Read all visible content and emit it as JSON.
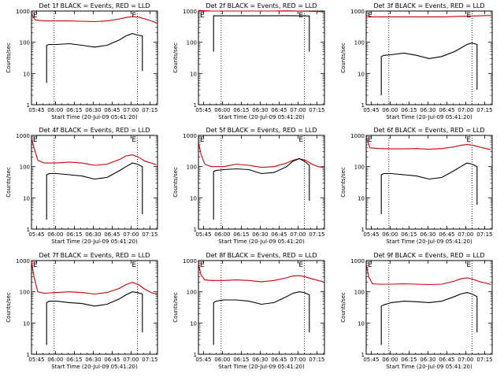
{
  "colors": {
    "events": "#000000",
    "lld": "#cc0000",
    "axes": "#000000"
  },
  "x_ticks": [
    "05:45",
    "06:00",
    "06:15",
    "06:30",
    "06:45",
    "07:00",
    "07:15"
  ],
  "ylabel": "Counts/sec",
  "xlabel": "Start Time (20-Jul-09 05:41:20)",
  "marker_label": "E",
  "chart_data": [
    {
      "type": "line",
      "title": "Det 1f BLACK = Events, RED = LLD",
      "ylabel": "Counts/sec",
      "xlabel": "Start Time (20-Jul-09 05:41:20)",
      "x_ticks": [
        "05:45",
        "06:00",
        "06:15",
        "06:30",
        "06:45",
        "07:00",
        "07:15"
      ],
      "y_scale": "log",
      "ylim": [
        1,
        1000
      ],
      "x_unit": "minutes after 05:41",
      "xlim": [
        0,
        100
      ],
      "vlines": [
        18,
        84
      ],
      "marker": "E",
      "series": [
        {
          "name": "LLD",
          "color": "#cc0000",
          "x": [
            0,
            3,
            10,
            20,
            30,
            40,
            50,
            60,
            70,
            75,
            80,
            85,
            90,
            95,
            99
          ],
          "y": [
            800,
            520,
            480,
            480,
            480,
            470,
            460,
            480,
            560,
            620,
            660,
            640,
            560,
            480,
            420
          ]
        },
        {
          "name": "Events",
          "color": "#000000",
          "x": [
            12,
            12,
            14,
            20,
            30,
            40,
            50,
            60,
            70,
            75,
            80,
            84,
            88,
            88
          ],
          "y": [
            5,
            80,
            85,
            85,
            90,
            80,
            70,
            80,
            120,
            160,
            190,
            170,
            160,
            12
          ]
        }
      ]
    },
    {
      "type": "line",
      "title": "Det 2f BLACK = Events, RED = LLD",
      "ylabel": "Counts/sec",
      "xlabel": "Start Time (20-Jul-09 05:41:20)",
      "x_ticks": [
        "05:45",
        "06:00",
        "06:15",
        "06:30",
        "06:45",
        "07:00",
        "07:15"
      ],
      "y_scale": "log",
      "ylim": [
        1,
        1000
      ],
      "x_unit": "minutes after 05:41",
      "xlim": [
        0,
        100
      ],
      "vlines": [
        18,
        84
      ],
      "marker": "E",
      "series": [
        {
          "name": "LLD",
          "color": "#cc0000",
          "x": [
            0,
            10,
            20,
            30,
            40,
            50,
            60,
            70,
            80,
            90,
            99
          ],
          "y": [
            1050,
            1000,
            1000,
            1000,
            1000,
            1000,
            1000,
            1020,
            1000,
            980,
            950
          ]
        },
        {
          "name": "Events",
          "color": "#000000",
          "x": [
            12,
            12,
            14,
            30,
            50,
            70,
            84,
            88,
            88
          ],
          "y": [
            50,
            700,
            700,
            700,
            700,
            710,
            700,
            690,
            50
          ]
        }
      ]
    },
    {
      "type": "line",
      "title": "Det 3f BLACK = Events, RED = LLD",
      "ylabel": "Counts/sec",
      "xlabel": "Start Time (20-Jul-09 05:41:20)",
      "x_ticks": [
        "05:45",
        "06:00",
        "06:15",
        "06:30",
        "06:45",
        "07:00",
        "07:15"
      ],
      "y_scale": "log",
      "ylim": [
        1,
        1000
      ],
      "x_unit": "minutes after 05:41",
      "xlim": [
        0,
        100
      ],
      "vlines": [
        18,
        84
      ],
      "marker": "E",
      "series": [
        {
          "name": "LLD",
          "color": "#cc0000",
          "x": [
            0,
            5,
            20,
            40,
            60,
            80,
            90,
            99
          ],
          "y": [
            700,
            650,
            650,
            650,
            650,
            680,
            700,
            720
          ]
        },
        {
          "name": "Events",
          "color": "#000000",
          "x": [
            12,
            12,
            14,
            20,
            30,
            40,
            50,
            60,
            70,
            75,
            80,
            84,
            88,
            88
          ],
          "y": [
            2,
            35,
            38,
            40,
            45,
            38,
            30,
            35,
            50,
            65,
            85,
            95,
            85,
            3
          ]
        }
      ]
    },
    {
      "type": "line",
      "title": "Det 4f BLACK = Events, RED = LLD",
      "ylabel": "Counts/sec",
      "xlabel": "Start Time (20-Jul-09 05:41:20)",
      "x_ticks": [
        "05:45",
        "06:00",
        "06:15",
        "06:30",
        "06:45",
        "07:00",
        "07:15"
      ],
      "y_scale": "log",
      "ylim": [
        1,
        1000
      ],
      "x_unit": "minutes after 05:41",
      "xlim": [
        0,
        100
      ],
      "vlines": [
        18,
        84
      ],
      "marker": "E",
      "series": [
        {
          "name": "LLD",
          "color": "#cc0000",
          "x": [
            0,
            2,
            5,
            10,
            20,
            30,
            40,
            50,
            60,
            70,
            75,
            80,
            85,
            90,
            95,
            99
          ],
          "y": [
            800,
            400,
            160,
            130,
            130,
            140,
            130,
            110,
            120,
            170,
            220,
            240,
            200,
            150,
            130,
            115
          ]
        },
        {
          "name": "Events",
          "color": "#000000",
          "x": [
            12,
            12,
            14,
            20,
            30,
            40,
            50,
            60,
            70,
            75,
            80,
            84,
            88,
            88
          ],
          "y": [
            2,
            55,
            60,
            60,
            55,
            50,
            40,
            45,
            75,
            100,
            130,
            120,
            100,
            3
          ]
        }
      ]
    },
    {
      "type": "line",
      "title": "Det 5f BLACK = Events, RED = LLD",
      "ylabel": "Counts/sec",
      "xlabel": "Start Time (20-Jul-09 05:41:20)",
      "x_ticks": [
        "05:45",
        "06:00",
        "06:15",
        "06:30",
        "06:45",
        "07:00",
        "07:15"
      ],
      "y_scale": "log",
      "ylim": [
        1,
        1000
      ],
      "x_unit": "minutes after 05:41",
      "xlim": [
        0,
        100
      ],
      "vlines": [
        18,
        84
      ],
      "marker": "E",
      "series": [
        {
          "name": "LLD",
          "color": "#cc0000",
          "x": [
            0,
            2,
            5,
            10,
            20,
            30,
            40,
            50,
            60,
            70,
            75,
            80,
            85,
            90,
            95,
            99
          ],
          "y": [
            600,
            250,
            120,
            100,
            100,
            120,
            110,
            95,
            100,
            130,
            160,
            180,
            160,
            120,
            100,
            95
          ]
        },
        {
          "name": "Events",
          "color": "#000000",
          "x": [
            12,
            12,
            14,
            20,
            30,
            40,
            50,
            60,
            70,
            75,
            80,
            84,
            88,
            88
          ],
          "y": [
            2,
            70,
            75,
            80,
            85,
            80,
            60,
            65,
            100,
            150,
            180,
            150,
            110,
            8
          ]
        }
      ]
    },
    {
      "type": "line",
      "title": "Det 6f BLACK = Events, RED = LLD",
      "ylabel": "Counts/sec",
      "xlabel": "Start Time (20-Jul-09 05:41:20)",
      "x_ticks": [
        "05:45",
        "06:00",
        "06:15",
        "06:30",
        "06:45",
        "07:00",
        "07:15"
      ],
      "y_scale": "log",
      "ylim": [
        1,
        1000
      ],
      "x_unit": "minutes after 05:41",
      "xlim": [
        0,
        100
      ],
      "vlines": [
        18,
        84
      ],
      "marker": "E",
      "series": [
        {
          "name": "LLD",
          "color": "#cc0000",
          "x": [
            0,
            3,
            10,
            20,
            30,
            40,
            50,
            60,
            70,
            75,
            80,
            85,
            90,
            95,
            99
          ],
          "y": [
            900,
            400,
            380,
            370,
            370,
            380,
            360,
            380,
            430,
            480,
            510,
            480,
            420,
            380,
            350
          ]
        },
        {
          "name": "Events",
          "color": "#000000",
          "x": [
            12,
            12,
            14,
            20,
            30,
            40,
            50,
            60,
            70,
            75,
            80,
            84,
            88,
            88
          ],
          "y": [
            3,
            55,
            60,
            60,
            55,
            50,
            40,
            45,
            75,
            100,
            130,
            120,
            100,
            6
          ]
        }
      ]
    },
    {
      "type": "line",
      "title": "Det 7f BLACK = Events, RED = LLD",
      "ylabel": "Counts/sec",
      "xlabel": "Start Time (20-Jul-09 05:41:20)",
      "x_ticks": [
        "05:45",
        "06:00",
        "06:15",
        "06:30",
        "06:45",
        "07:00",
        "07:15"
      ],
      "y_scale": "log",
      "ylim": [
        1,
        1000
      ],
      "x_unit": "minutes after 05:41",
      "xlim": [
        0,
        100
      ],
      "vlines": [
        18,
        84
      ],
      "marker": "E",
      "series": [
        {
          "name": "LLD",
          "color": "#cc0000",
          "x": [
            0,
            2,
            5,
            10,
            20,
            30,
            40,
            50,
            60,
            70,
            75,
            80,
            85,
            90,
            95,
            99
          ],
          "y": [
            900,
            300,
            100,
            90,
            95,
            100,
            95,
            85,
            95,
            130,
            170,
            200,
            170,
            120,
            95,
            85
          ]
        },
        {
          "name": "Events",
          "color": "#000000",
          "x": [
            12,
            12,
            14,
            20,
            30,
            40,
            50,
            60,
            70,
            75,
            80,
            84,
            88,
            88
          ],
          "y": [
            2,
            45,
            50,
            50,
            45,
            42,
            35,
            40,
            60,
            80,
            100,
            95,
            85,
            5
          ]
        }
      ]
    },
    {
      "type": "line",
      "title": "Det 8f BLACK = Events, RED = LLD",
      "ylabel": "Counts/sec",
      "xlabel": "Start Time (20-Jul-09 05:41:20)",
      "x_ticks": [
        "05:45",
        "06:00",
        "06:15",
        "06:30",
        "06:45",
        "07:00",
        "07:15"
      ],
      "y_scale": "log",
      "ylim": [
        1,
        1000
      ],
      "x_unit": "minutes after 05:41",
      "xlim": [
        0,
        100
      ],
      "vlines": [
        18,
        84
      ],
      "marker": "E",
      "series": [
        {
          "name": "LLD",
          "color": "#cc0000",
          "x": [
            0,
            2,
            5,
            10,
            20,
            30,
            40,
            50,
            60,
            70,
            75,
            80,
            85,
            90,
            95,
            99
          ],
          "y": [
            800,
            350,
            240,
            230,
            230,
            240,
            230,
            210,
            230,
            280,
            320,
            330,
            300,
            260,
            230,
            210
          ]
        },
        {
          "name": "Events",
          "color": "#000000",
          "x": [
            12,
            12,
            14,
            20,
            30,
            40,
            50,
            60,
            70,
            75,
            80,
            84,
            88,
            88
          ],
          "y": [
            2,
            45,
            50,
            55,
            55,
            50,
            40,
            45,
            70,
            90,
            100,
            95,
            80,
            5
          ]
        }
      ]
    },
    {
      "type": "line",
      "title": "Det 9f BLACK = Events, RED = LLD",
      "ylabel": "Counts/sec",
      "xlabel": "Start Time (20-Jul-09 05:41:20)",
      "x_ticks": [
        "05:45",
        "06:00",
        "06:15",
        "06:30",
        "06:45",
        "07:00",
        "07:15"
      ],
      "y_scale": "log",
      "ylim": [
        1,
        1000
      ],
      "x_unit": "minutes after 05:41",
      "xlim": [
        0,
        100
      ],
      "vlines": [
        18,
        84
      ],
      "marker": "E",
      "series": [
        {
          "name": "LLD",
          "color": "#cc0000",
          "x": [
            0,
            2,
            5,
            10,
            20,
            30,
            40,
            50,
            60,
            70,
            75,
            80,
            85,
            90,
            95,
            99
          ],
          "y": [
            800,
            300,
            180,
            175,
            175,
            180,
            175,
            170,
            175,
            220,
            260,
            280,
            250,
            210,
            190,
            170
          ]
        },
        {
          "name": "Events",
          "color": "#000000",
          "x": [
            12,
            12,
            14,
            20,
            30,
            40,
            50,
            60,
            70,
            75,
            80,
            84,
            88,
            88
          ],
          "y": [
            2,
            35,
            38,
            45,
            50,
            48,
            45,
            50,
            70,
            85,
            95,
            85,
            70,
            5
          ]
        }
      ]
    }
  ]
}
